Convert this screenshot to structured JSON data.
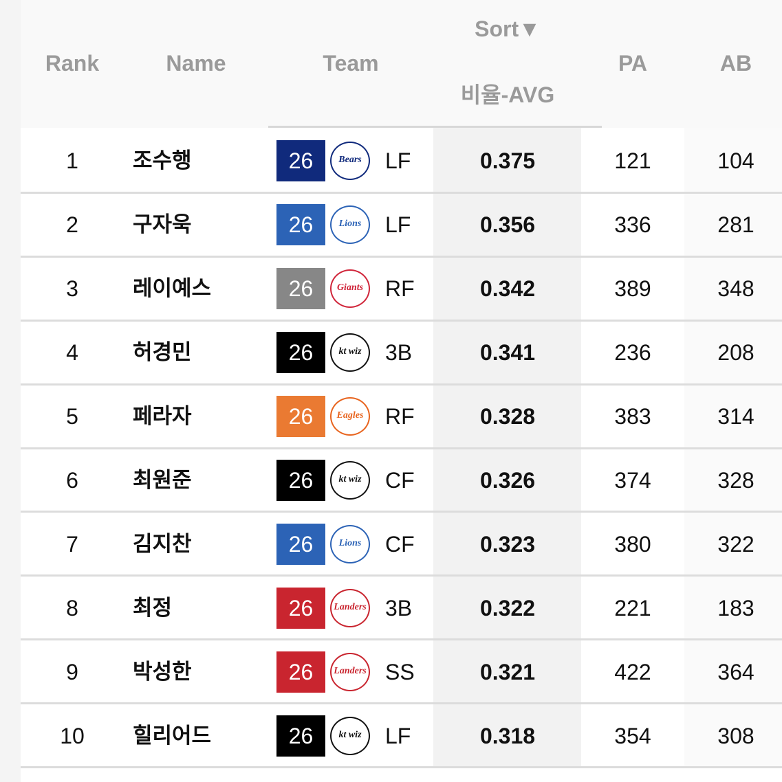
{
  "header": {
    "sort": "Sort▼",
    "columns": [
      "Rank",
      "Name",
      "Team",
      "비율-AVG",
      "PA",
      "AB"
    ]
  },
  "rows": [
    {
      "rank": 1,
      "name": "조수행",
      "year": "26",
      "badge_color": "#102a7c",
      "logo": "Bears",
      "logo_color": "#102a7c",
      "position": "LF",
      "avg": 0.375,
      "pa": 121,
      "ab": 104
    },
    {
      "rank": 2,
      "name": "구자욱",
      "year": "26",
      "badge_color": "#2c63b6",
      "logo": "Lions",
      "logo_color": "#2c63b6",
      "position": "LF",
      "avg": 0.356,
      "pa": 336,
      "ab": 281
    },
    {
      "rank": 3,
      "name": "레이예스",
      "year": "26",
      "badge_color": "#878787",
      "logo": "Giants",
      "logo_color": "#d0253a",
      "position": "RF",
      "avg": 0.342,
      "pa": 389,
      "ab": 348
    },
    {
      "rank": 4,
      "name": "허경민",
      "year": "26",
      "badge_color": "#000000",
      "logo": "kt wiz",
      "logo_color": "#111111",
      "position": "3B",
      "avg": 0.341,
      "pa": 236,
      "ab": 208
    },
    {
      "rank": 5,
      "name": "페라자",
      "year": "26",
      "badge_color": "#ea7a32",
      "logo": "Eagles",
      "logo_color": "#e8641e",
      "position": "RF",
      "avg": 0.328,
      "pa": 383,
      "ab": 314
    },
    {
      "rank": 6,
      "name": "최원준",
      "year": "26",
      "badge_color": "#000000",
      "logo": "kt wiz",
      "logo_color": "#111111",
      "position": "CF",
      "avg": 0.326,
      "pa": 374,
      "ab": 328
    },
    {
      "rank": 7,
      "name": "김지찬",
      "year": "26",
      "badge_color": "#2c63b6",
      "logo": "Lions",
      "logo_color": "#2c63b6",
      "position": "CF",
      "avg": 0.323,
      "pa": 380,
      "ab": 322
    },
    {
      "rank": 8,
      "name": "최정",
      "year": "26",
      "badge_color": "#c9252f",
      "logo": "Landers",
      "logo_color": "#c9252f",
      "position": "3B",
      "avg": 0.322,
      "pa": 221,
      "ab": 183
    },
    {
      "rank": 9,
      "name": "박성한",
      "year": "26",
      "badge_color": "#c9252f",
      "logo": "Landers",
      "logo_color": "#c9252f",
      "position": "SS",
      "avg": 0.321,
      "pa": 422,
      "ab": 364
    },
    {
      "rank": 10,
      "name": "힐리어드",
      "year": "26",
      "badge_color": "#000000",
      "logo": "kt wiz",
      "logo_color": "#111111",
      "position": "LF",
      "avg": 0.318,
      "pa": 354,
      "ab": 308
    }
  ]
}
